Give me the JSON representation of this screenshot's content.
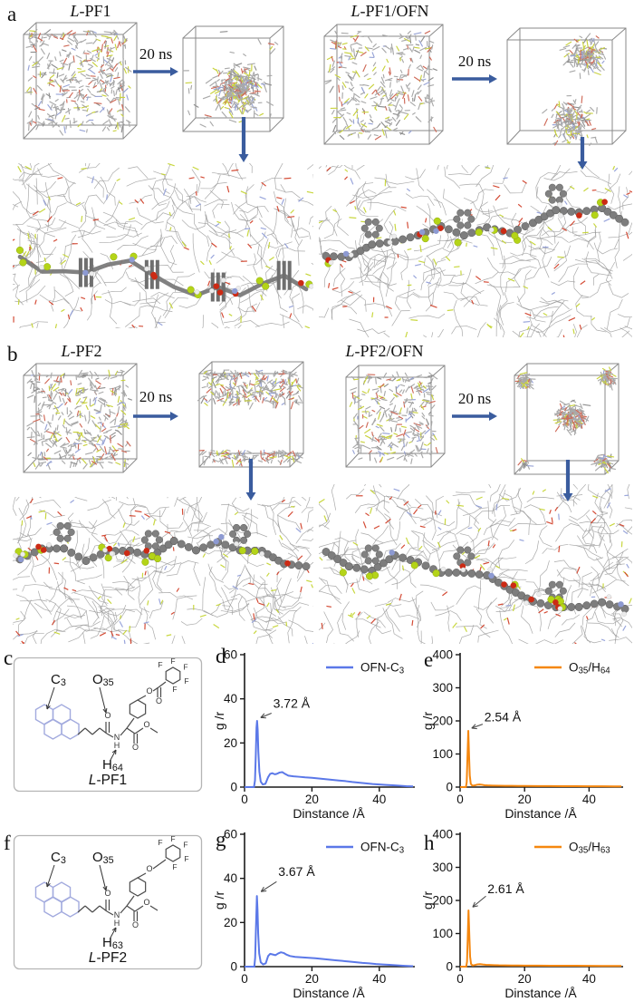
{
  "panels": {
    "a": {
      "letter": "a",
      "left": {
        "title_i": "L",
        "title_r": "-PF1",
        "arrow_label": "20 ns"
      },
      "right": {
        "title_i": "L",
        "title_r": "-PF1/OFN",
        "arrow_label": "20 ns"
      }
    },
    "b": {
      "letter": "b",
      "left": {
        "title_i": "L",
        "title_r": "-PF2",
        "arrow_label": "20 ns"
      },
      "right": {
        "title_i": "L",
        "title_r": "-PF2/OFN",
        "arrow_label": "20 ns"
      }
    }
  },
  "structures": {
    "c": {
      "letter": "c",
      "variant": "ester",
      "caption_i": "L",
      "caption_r": "-PF1",
      "labels": {
        "c": {
          "p": "C",
          "s": "3"
        },
        "o": {
          "p": "O",
          "s": "35"
        },
        "h": {
          "p": "H",
          "s": "64"
        }
      },
      "atoms": {
        "o": "O",
        "n": "N",
        "h": "H",
        "f": "F"
      }
    },
    "f": {
      "letter": "f",
      "variant": "ether",
      "caption_i": "L",
      "caption_r": "-PF2",
      "labels": {
        "c": {
          "p": "C",
          "s": "3"
        },
        "o": {
          "p": "O",
          "s": "35"
        },
        "h": {
          "p": "H",
          "s": "63"
        }
      },
      "atoms": {
        "o": "O",
        "n": "N",
        "h": "H",
        "f": "F"
      }
    }
  },
  "chart_data": [
    {
      "panel_letter": "d",
      "type": "line",
      "color": "#5b78e8",
      "legend": {
        "p1": "OFN-C",
        "s1": "3"
      },
      "xlabel": "Dinstance /Å",
      "ylabel": "g /r",
      "xlim": [
        0,
        50
      ],
      "ylim": [
        0,
        60
      ],
      "xticks": [
        0,
        20,
        40
      ],
      "yticks": [
        0,
        20,
        40,
        60
      ],
      "annotation": {
        "text": "3.72 Å",
        "tx": 8.5,
        "ty": 36,
        "line": [
          8.0,
          33.5,
          4.8,
          31.5
        ]
      },
      "points": [
        [
          0,
          0
        ],
        [
          2.8,
          0
        ],
        [
          3.1,
          3
        ],
        [
          3.35,
          15
        ],
        [
          3.55,
          27
        ],
        [
          3.72,
          30
        ],
        [
          3.9,
          26
        ],
        [
          4.1,
          16
        ],
        [
          4.4,
          7
        ],
        [
          4.8,
          2.5
        ],
        [
          5.4,
          1.2
        ],
        [
          6.2,
          1.5
        ],
        [
          7,
          4.5
        ],
        [
          7.6,
          6
        ],
        [
          8.2,
          6.3
        ],
        [
          9,
          5.8
        ],
        [
          9.6,
          6
        ],
        [
          10.4,
          6.6
        ],
        [
          11.2,
          6.8
        ],
        [
          12,
          6
        ],
        [
          13,
          5.2
        ],
        [
          14.5,
          4.9
        ],
        [
          16,
          4.7
        ],
        [
          18,
          4.4
        ],
        [
          20,
          4.2
        ],
        [
          22,
          3.9
        ],
        [
          24,
          3.6
        ],
        [
          26,
          3.3
        ],
        [
          28,
          3
        ],
        [
          30,
          2.7
        ],
        [
          32,
          2.3
        ],
        [
          34,
          2
        ],
        [
          36,
          1.7
        ],
        [
          38,
          1.4
        ],
        [
          40,
          1.2
        ],
        [
          42,
          1
        ],
        [
          44,
          0.8
        ],
        [
          46,
          0.6
        ],
        [
          48,
          0.4
        ],
        [
          50,
          0.3
        ]
      ]
    },
    {
      "panel_letter": "e",
      "type": "line",
      "color": "#f5870f",
      "legend": {
        "p1": "O",
        "s1": "35",
        "p2": "/H",
        "s2": "64"
      },
      "xlabel": "Dinstance /Å",
      "ylabel": "g /r",
      "xlim": [
        0,
        50
      ],
      "ylim": [
        0,
        400
      ],
      "xticks": [
        0,
        20,
        40
      ],
      "yticks": [
        0,
        100,
        200,
        300,
        400
      ],
      "annotation": {
        "text": "2.54 Å",
        "tx": 7.5,
        "ty": 198,
        "line": [
          7.0,
          190,
          3.6,
          178
        ]
      },
      "points": [
        [
          0,
          0
        ],
        [
          1.8,
          0
        ],
        [
          2.05,
          15
        ],
        [
          2.25,
          80
        ],
        [
          2.54,
          170
        ],
        [
          2.8,
          90
        ],
        [
          3.0,
          35
        ],
        [
          3.3,
          10
        ],
        [
          3.8,
          4
        ],
        [
          4.5,
          5
        ],
        [
          5.2,
          7
        ],
        [
          6,
          8
        ],
        [
          6.8,
          7
        ],
        [
          7.6,
          5.5
        ],
        [
          8.5,
          5
        ],
        [
          10,
          4.5
        ],
        [
          12,
          4
        ],
        [
          14,
          3.8
        ],
        [
          16,
          3.6
        ],
        [
          18,
          3.4
        ],
        [
          20,
          3.3
        ],
        [
          24,
          3.1
        ],
        [
          28,
          3
        ],
        [
          32,
          2.9
        ],
        [
          36,
          2.7
        ],
        [
          40,
          2.5
        ],
        [
          44,
          2.3
        ],
        [
          48,
          2.1
        ],
        [
          50,
          2
        ]
      ]
    },
    {
      "panel_letter": "g",
      "type": "line",
      "color": "#5b78e8",
      "legend": {
        "p1": "OFN-C",
        "s1": "3"
      },
      "xlabel": "Dinstance /Å",
      "ylabel": "g /r",
      "xlim": [
        0,
        50
      ],
      "ylim": [
        0,
        60
      ],
      "xticks": [
        0,
        20,
        40
      ],
      "yticks": [
        0,
        20,
        40,
        60
      ],
      "annotation": {
        "text": "3.67 Å",
        "tx": 10,
        "ty": 41,
        "line": [
          9.5,
          38.5,
          4.9,
          34
        ]
      },
      "points": [
        [
          0,
          0
        ],
        [
          2.9,
          0
        ],
        [
          3.15,
          4
        ],
        [
          3.4,
          18
        ],
        [
          3.67,
          32
        ],
        [
          3.85,
          26
        ],
        [
          4.05,
          15
        ],
        [
          4.35,
          6
        ],
        [
          4.8,
          2
        ],
        [
          5.5,
          1
        ],
        [
          6.3,
          1.5
        ],
        [
          7,
          4.8
        ],
        [
          7.6,
          5.8
        ],
        [
          8.4,
          5.5
        ],
        [
          9.2,
          5.2
        ],
        [
          10,
          6
        ],
        [
          10.8,
          6.5
        ],
        [
          11.6,
          6.2
        ],
        [
          12.5,
          5.4
        ],
        [
          13.5,
          4.8
        ],
        [
          15,
          4.4
        ],
        [
          17,
          4.2
        ],
        [
          19,
          4
        ],
        [
          21,
          3.8
        ],
        [
          23,
          3.5
        ],
        [
          25,
          3.2
        ],
        [
          27,
          2.9
        ],
        [
          29,
          2.6
        ],
        [
          31,
          2.3
        ],
        [
          33,
          2
        ],
        [
          35,
          1.7
        ],
        [
          37,
          1.5
        ],
        [
          39,
          1.2
        ],
        [
          41,
          1
        ],
        [
          43,
          0.8
        ],
        [
          45,
          0.6
        ],
        [
          47,
          0.4
        ],
        [
          49,
          0.25
        ],
        [
          50,
          0.2
        ]
      ]
    },
    {
      "panel_letter": "h",
      "type": "line",
      "color": "#f5870f",
      "legend": {
        "p1": "O",
        "s1": "35",
        "p2": "/H",
        "s2": "63"
      },
      "xlabel": "Dinstance /Å",
      "ylabel": "g /r",
      "xlim": [
        0,
        50
      ],
      "ylim": [
        0,
        400
      ],
      "xticks": [
        0,
        20,
        40
      ],
      "yticks": [
        0,
        100,
        200,
        300,
        400
      ],
      "annotation": {
        "text": "2.61 Å",
        "tx": 8.5,
        "ty": 222,
        "line": [
          8.0,
          213,
          3.9,
          180
        ]
      },
      "points": [
        [
          0,
          0
        ],
        [
          1.9,
          0
        ],
        [
          2.15,
          15
        ],
        [
          2.35,
          80
        ],
        [
          2.61,
          170
        ],
        [
          2.9,
          85
        ],
        [
          3.1,
          30
        ],
        [
          3.4,
          8
        ],
        [
          3.9,
          3.5
        ],
        [
          4.6,
          5
        ],
        [
          5.4,
          7
        ],
        [
          6.2,
          7.5
        ],
        [
          7,
          6.5
        ],
        [
          8,
          5.5
        ],
        [
          9,
          5
        ],
        [
          10.5,
          4.5
        ],
        [
          12,
          4
        ],
        [
          14,
          3.8
        ],
        [
          16,
          3.5
        ],
        [
          18,
          3.3
        ],
        [
          20,
          3.2
        ],
        [
          24,
          3
        ],
        [
          28,
          2.9
        ],
        [
          32,
          2.8
        ],
        [
          36,
          2.6
        ],
        [
          40,
          2.4
        ],
        [
          44,
          2.2
        ],
        [
          48,
          2
        ],
        [
          50,
          2
        ]
      ]
    }
  ],
  "style_colors": {
    "arrow_blue": "#3a5c9e",
    "pyrene_highlight": "#a2aade",
    "blue_line": "#5b78e8",
    "orange_line": "#f5870f"
  }
}
